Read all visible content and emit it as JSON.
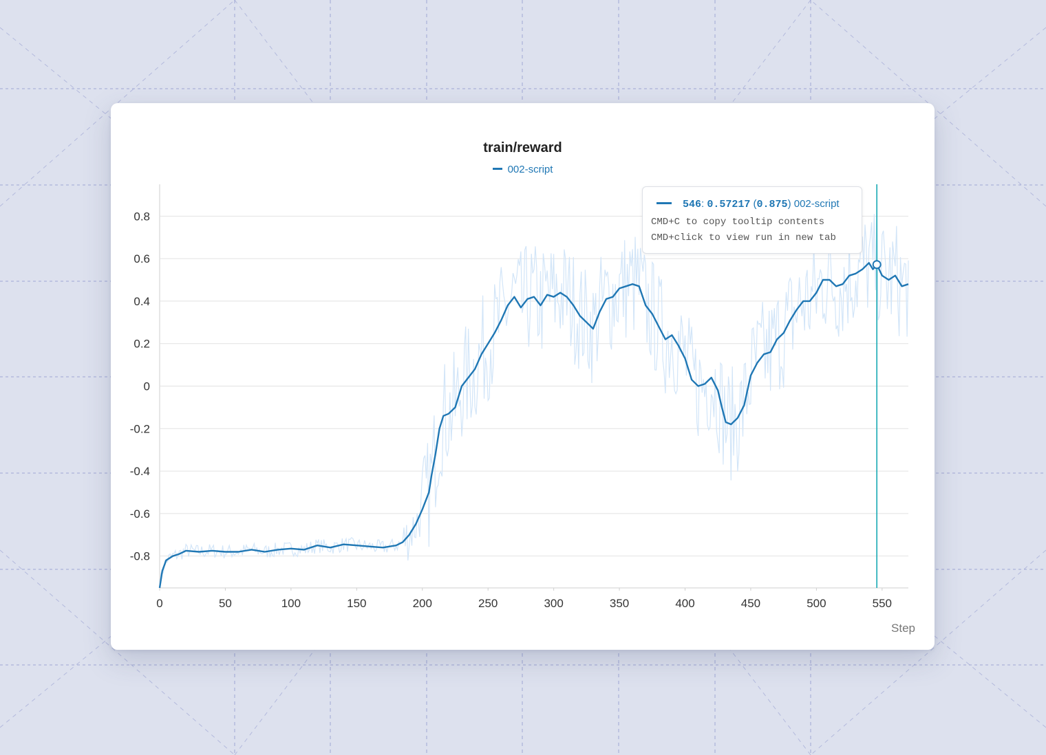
{
  "colors": {
    "series": "#1f77b4",
    "series_raw": "#d2e5f8",
    "hover_line": "#17a9b4",
    "grid": "#e2e2e2",
    "tick_text": "#333333",
    "background": "#dde1ee",
    "background_lines": "#8b93cc"
  },
  "chart_data": {
    "type": "line",
    "title": "train/reward",
    "xlabel": "Step",
    "ylabel": "",
    "xlim": [
      0,
      570
    ],
    "ylim": [
      -0.95,
      0.95
    ],
    "x_ticks": [
      "0",
      "50",
      "100",
      "150",
      "200",
      "250",
      "300",
      "350",
      "400",
      "450",
      "500",
      "550"
    ],
    "y_ticks": [
      "0.8",
      "0.6",
      "0.4",
      "0.2",
      "0",
      "-0.2",
      "-0.4",
      "-0.6",
      "-0.8"
    ],
    "grid": true,
    "legend_position": "top-center",
    "series": [
      {
        "name": "002-script",
        "smoothed": {
          "x": [
            0,
            2,
            5,
            10,
            15,
            20,
            30,
            40,
            50,
            60,
            70,
            80,
            90,
            100,
            110,
            120,
            130,
            140,
            150,
            160,
            170,
            180,
            185,
            190,
            195,
            200,
            205,
            207,
            210,
            213,
            216,
            220,
            225,
            230,
            235,
            240,
            245,
            250,
            255,
            260,
            265,
            270,
            275,
            280,
            285,
            290,
            295,
            300,
            305,
            310,
            315,
            320,
            325,
            330,
            335,
            340,
            345,
            350,
            355,
            360,
            365,
            370,
            375,
            380,
            385,
            390,
            395,
            400,
            405,
            410,
            415,
            420,
            425,
            428,
            431,
            435,
            440,
            445,
            450,
            455,
            460,
            465,
            470,
            475,
            480,
            485,
            490,
            495,
            500,
            505,
            510,
            515,
            520,
            525,
            530,
            535,
            540,
            543,
            546,
            550,
            555,
            560,
            565,
            570
          ],
          "y": [
            -0.95,
            -0.87,
            -0.82,
            -0.8,
            -0.79,
            -0.775,
            -0.78,
            -0.775,
            -0.78,
            -0.78,
            -0.77,
            -0.78,
            -0.77,
            -0.765,
            -0.77,
            -0.75,
            -0.76,
            -0.745,
            -0.75,
            -0.755,
            -0.76,
            -0.75,
            -0.735,
            -0.7,
            -0.65,
            -0.58,
            -0.5,
            -0.42,
            -0.32,
            -0.2,
            -0.14,
            -0.13,
            -0.1,
            0.0,
            0.04,
            0.08,
            0.15,
            0.2,
            0.25,
            0.31,
            0.38,
            0.42,
            0.37,
            0.41,
            0.42,
            0.38,
            0.43,
            0.42,
            0.44,
            0.42,
            0.38,
            0.33,
            0.3,
            0.27,
            0.35,
            0.41,
            0.42,
            0.46,
            0.47,
            0.48,
            0.47,
            0.38,
            0.34,
            0.28,
            0.22,
            0.24,
            0.19,
            0.13,
            0.03,
            0.0,
            0.01,
            0.04,
            -0.02,
            -0.1,
            -0.17,
            -0.18,
            -0.15,
            -0.09,
            0.05,
            0.11,
            0.15,
            0.16,
            0.22,
            0.25,
            0.31,
            0.36,
            0.4,
            0.4,
            0.44,
            0.5,
            0.5,
            0.47,
            0.48,
            0.52,
            0.53,
            0.55,
            0.58,
            0.55,
            0.57217,
            0.52,
            0.5,
            0.52,
            0.47,
            0.48
          ]
        }
      }
    ],
    "hover": {
      "step": 546,
      "value": 0.57217,
      "raw_value": 0.875
    }
  },
  "tooltip": {
    "step": "546",
    "value": "0.57217",
    "raw_value": "0.875",
    "run_name": "002-script",
    "hint_copy": "CMD+C to copy tooltip contents",
    "hint_click": "CMD+click to view run in new tab"
  }
}
